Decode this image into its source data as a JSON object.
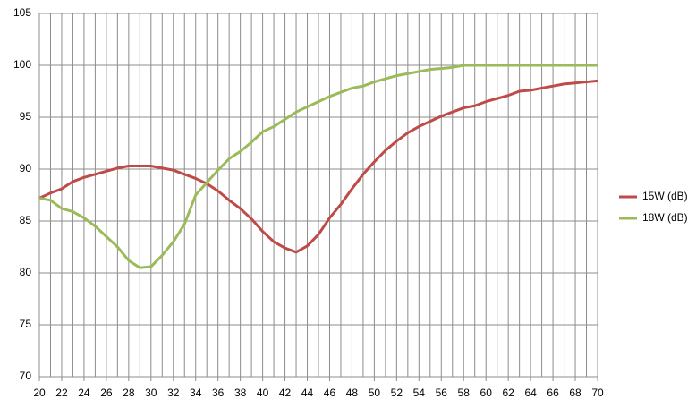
{
  "chart_data": {
    "type": "line",
    "x": [
      20,
      21,
      22,
      23,
      24,
      25,
      26,
      27,
      28,
      29,
      30,
      31,
      32,
      33,
      34,
      35,
      36,
      37,
      38,
      39,
      40,
      41,
      42,
      43,
      44,
      45,
      46,
      47,
      48,
      49,
      50,
      51,
      52,
      53,
      54,
      55,
      56,
      57,
      58,
      59,
      60,
      61,
      62,
      63,
      64,
      65,
      66,
      67,
      68,
      69,
      70
    ],
    "series": [
      {
        "name": "15W (dB)",
        "color": "#be4b48",
        "values": [
          87.2,
          87.7,
          88.1,
          88.8,
          89.2,
          89.5,
          89.8,
          90.1,
          90.3,
          90.3,
          90.3,
          90.1,
          89.9,
          89.5,
          89.1,
          88.6,
          87.9,
          87.0,
          86.2,
          85.2,
          84.0,
          83.0,
          82.4,
          82.0,
          82.6,
          83.7,
          85.3,
          86.6,
          88.1,
          89.5,
          90.7,
          91.8,
          92.7,
          93.5,
          94.1,
          94.6,
          95.1,
          95.5,
          95.9,
          96.1,
          96.5,
          96.8,
          97.1,
          97.5,
          97.6,
          97.8,
          98.0,
          98.2,
          98.3,
          98.4,
          98.5
        ]
      },
      {
        "name": "18W (dB)",
        "color": "#9bbb59",
        "values": [
          87.2,
          87.0,
          86.2,
          85.9,
          85.3,
          84.5,
          83.5,
          82.5,
          81.2,
          80.5,
          80.6,
          81.7,
          83.0,
          84.7,
          87.5,
          88.7,
          89.9,
          91.0,
          91.7,
          92.6,
          93.6,
          94.1,
          94.8,
          95.5,
          96.0,
          96.5,
          97.0,
          97.4,
          97.8,
          98.0,
          98.4,
          98.7,
          99.0,
          99.2,
          99.4,
          99.6,
          99.7,
          99.8,
          100,
          100,
          100,
          100,
          100,
          100,
          100,
          100,
          100,
          100,
          100,
          100,
          100
        ]
      }
    ],
    "xlim": [
      20,
      70
    ],
    "xticks": [
      20,
      22,
      24,
      26,
      28,
      30,
      32,
      34,
      36,
      38,
      40,
      42,
      44,
      46,
      48,
      50,
      52,
      54,
      56,
      58,
      60,
      62,
      64,
      66,
      68,
      70
    ],
    "ylim": [
      70,
      105
    ],
    "yticks": [
      70,
      75,
      80,
      85,
      90,
      95,
      100,
      105
    ],
    "grid": true,
    "legend": "right"
  }
}
